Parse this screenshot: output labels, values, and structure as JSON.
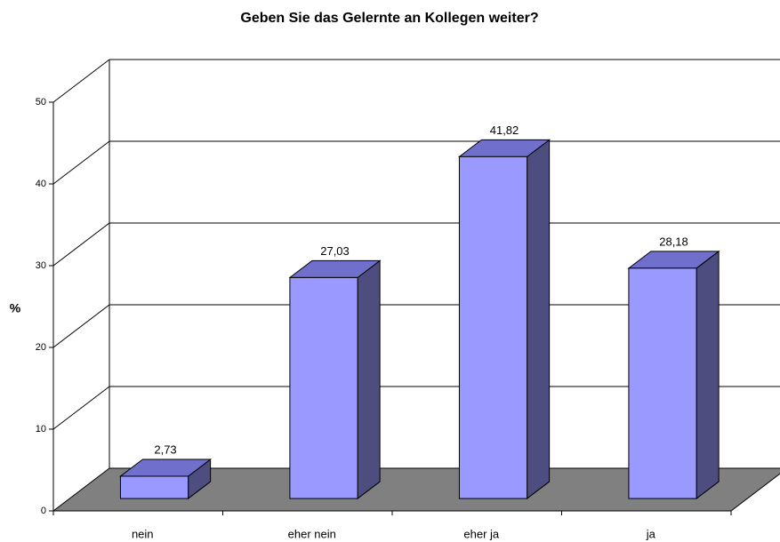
{
  "chart_data": {
    "type": "bar3d",
    "title": "Geben Sie das Gelernte an Kollegen weiter?",
    "y_label": "%",
    "categories": [
      "nein",
      "eher nein",
      "eher ja",
      "ja"
    ],
    "values": [
      2.73,
      27.03,
      41.82,
      28.18
    ],
    "value_labels": [
      "2,73",
      "27,03",
      "41,82",
      "28,18"
    ],
    "color": "#9999ff",
    "ylim": [
      0,
      50
    ],
    "yticks": [
      0,
      10,
      20,
      30,
      40,
      50
    ],
    "grid": true
  }
}
